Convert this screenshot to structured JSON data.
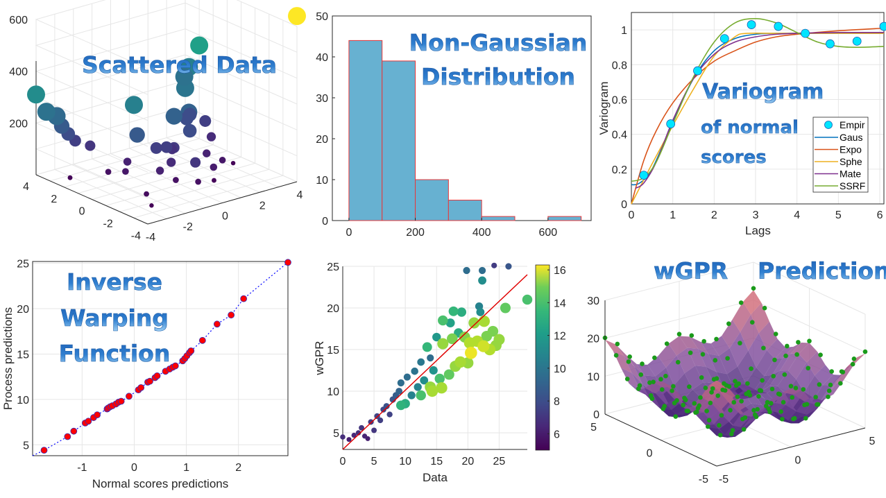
{
  "colors": {
    "wordart_top": "#1e5fb4",
    "wordart_bottom": "#8ec4f0",
    "hist_fill": "#67b1d1",
    "hist_edge": "#e8373a",
    "grid": "#e6e6e6",
    "axis": "#262626",
    "empir_marker": "#00e5ff",
    "identity_line": "#e00000",
    "warp_marker": "#ff0000",
    "warp_line": "#0000ff",
    "surface_pts": "#1a9a1a"
  },
  "chart_data": [
    {
      "id": "scattered-data",
      "type": "scatter",
      "title": "Scattered Data",
      "projection": "3d",
      "xlim": [
        -4,
        4
      ],
      "ylim": [
        -4,
        4
      ],
      "zlim": [
        0,
        600
      ],
      "x_ticks": [
        "-4",
        "-2",
        "0",
        "2",
        "4"
      ],
      "y_ticks": [
        "4",
        "2",
        "0",
        "-2",
        "-4"
      ],
      "z_ticks": [
        "200",
        "400",
        "600"
      ],
      "colormap": "viridis",
      "points": [
        {
          "x": 4,
          "y": -4,
          "z": 640
        },
        {
          "x": -4,
          "y": 4,
          "z": 310
        },
        {
          "x": -3.6,
          "y": 3.8,
          "z": 240
        },
        {
          "x": -3.2,
          "y": 3.6,
          "z": 220
        },
        {
          "x": -3,
          "y": 3.5,
          "z": 180
        },
        {
          "x": -2.8,
          "y": 3.3,
          "z": 150
        },
        {
          "x": -2.5,
          "y": 3.2,
          "z": 120
        },
        {
          "x": -2,
          "y": 2.8,
          "z": 100
        },
        {
          "x": -1,
          "y": 1,
          "z": 280
        },
        {
          "x": -1.2,
          "y": 0.5,
          "z": 180
        },
        {
          "x": 4,
          "y": 3,
          "z": 360
        },
        {
          "x": 3.6,
          "y": 3.2,
          "z": 280
        },
        {
          "x": 3.5,
          "y": 3.4,
          "z": 240
        },
        {
          "x": 2.5,
          "y": 2,
          "z": 250
        },
        {
          "x": 1.8,
          "y": 0.8,
          "z": 200
        },
        {
          "x": 1,
          "y": 0.8,
          "z": 200
        },
        {
          "x": 1.4,
          "y": 0.2,
          "z": 150
        },
        {
          "x": 2.2,
          "y": 1.5,
          "z": 150
        },
        {
          "x": 2.6,
          "y": 1.8,
          "z": 150
        },
        {
          "x": 0.2,
          "y": -1.8,
          "z": 100
        },
        {
          "x": 1.4,
          "y": -1.5,
          "z": 50
        },
        {
          "x": 1.2,
          "y": -1.8,
          "z": 10
        },
        {
          "x": 0,
          "y": 0,
          "z": 120
        },
        {
          "x": 0.4,
          "y": 0,
          "z": 110
        },
        {
          "x": -0.4,
          "y": 0.2,
          "z": 120
        },
        {
          "x": 0.6,
          "y": 0.4,
          "z": 90
        },
        {
          "x": -0.2,
          "y": -0.6,
          "z": 80
        },
        {
          "x": -2,
          "y": 1.5,
          "z": 30
        },
        {
          "x": -1.2,
          "y": 1.2,
          "z": 60
        },
        {
          "x": -1.6,
          "y": 0.8,
          "z": 40
        },
        {
          "x": -0.8,
          "y": -0.6,
          "z": 60
        },
        {
          "x": -0.4,
          "y": -1.2,
          "z": 30
        },
        {
          "x": 0.2,
          "y": -2,
          "z": 30
        },
        {
          "x": -2.2,
          "y": -1.5,
          "z": 20
        },
        {
          "x": -2.6,
          "y": -2.4,
          "z": 5
        },
        {
          "x": -3.3,
          "y": 2.5,
          "z": 10
        },
        {
          "x": 3.2,
          "y": 1.5,
          "z": 120
        },
        {
          "x": 3,
          "y": 0.8,
          "z": 80
        },
        {
          "x": 2,
          "y": -0.2,
          "z": 60
        },
        {
          "x": 2.4,
          "y": -0.8,
          "z": 40
        },
        {
          "x": 3.2,
          "y": -0.5,
          "z": 5
        }
      ]
    },
    {
      "id": "histogram",
      "type": "bar",
      "title": "Non-Gaussian Distribution",
      "title_lines": [
        "Non-Gaussian",
        "Distribution"
      ],
      "bin_edges": [
        0,
        100,
        200,
        300,
        400,
        500,
        600,
        700
      ],
      "values": [
        44,
        39,
        10,
        5,
        1,
        0,
        1
      ],
      "xlim": [
        -50,
        730
      ],
      "ylim": [
        0,
        50
      ],
      "x_ticks": [
        "0",
        "200",
        "400",
        "600"
      ],
      "y_ticks": [
        "0",
        "10",
        "20",
        "30",
        "40",
        "50"
      ]
    },
    {
      "id": "variogram",
      "type": "line",
      "title": "Variogram of normal scores",
      "title_lines": [
        "Variogram",
        "of normal",
        "scores"
      ],
      "xlabel": "Lags",
      "ylabel": "Variogram",
      "xlim": [
        0,
        6.1
      ],
      "ylim": [
        0,
        1.1
      ],
      "x_ticks": [
        "0",
        "1",
        "2",
        "3",
        "4",
        "5",
        "6"
      ],
      "y_ticks": [
        "0",
        "0.2",
        "0.4",
        "0.6",
        "0.8",
        "1"
      ],
      "legend_position": "bottom-right",
      "empirical": {
        "name": "Empir",
        "x": [
          0.3,
          0.95,
          1.6,
          2.25,
          2.9,
          3.55,
          4.2,
          4.8,
          5.45,
          6.1
        ],
        "y": [
          0.165,
          0.46,
          0.765,
          0.95,
          1.03,
          1.02,
          0.98,
          0.92,
          0.935,
          1.02
        ]
      },
      "series": [
        {
          "name": "Gaus",
          "color": "#0072bd",
          "x": [
            0,
            0.2,
            0.5,
            1,
            1.5,
            2,
            2.5,
            3,
            3.5,
            4,
            5,
            6.1
          ],
          "y": [
            0.11,
            0.12,
            0.2,
            0.47,
            0.72,
            0.88,
            0.95,
            0.975,
            0.98,
            0.98,
            0.98,
            0.98
          ]
        },
        {
          "name": "Expo",
          "color": "#d95319",
          "x": [
            0,
            0.3,
            0.6,
            1,
            1.5,
            2,
            2.5,
            3,
            3.5,
            4,
            5,
            6.1
          ],
          "y": [
            0,
            0.25,
            0.42,
            0.58,
            0.72,
            0.82,
            0.88,
            0.93,
            0.96,
            0.975,
            0.995,
            1.01
          ]
        },
        {
          "name": "Sphe",
          "color": "#edb120",
          "x": [
            0,
            0.5,
            1,
            1.5,
            2,
            2.5,
            2.8,
            3.5,
            4,
            5,
            6.1
          ],
          "y": [
            0,
            0.23,
            0.45,
            0.66,
            0.85,
            0.96,
            0.98,
            0.98,
            0.98,
            0.98,
            0.98
          ]
        },
        {
          "name": "Mate",
          "color": "#7e2f8e",
          "x": [
            0.1,
            0.3,
            0.6,
            1,
            1.5,
            2,
            2.5,
            3,
            3.5,
            4,
            5,
            6.1
          ],
          "y": [
            0.09,
            0.12,
            0.24,
            0.48,
            0.72,
            0.86,
            0.93,
            0.96,
            0.975,
            0.98,
            0.985,
            0.985
          ]
        },
        {
          "name": "SSRF",
          "color": "#77ac30",
          "x": [
            0,
            0.3,
            0.6,
            1,
            1.5,
            2,
            2.5,
            3,
            3.5,
            4,
            4.5,
            5,
            5.5,
            6.1
          ],
          "y": [
            0.13,
            0.15,
            0.24,
            0.46,
            0.73,
            0.93,
            1.04,
            1.065,
            1.04,
            0.985,
            0.93,
            0.905,
            0.9,
            0.905
          ]
        }
      ]
    },
    {
      "id": "inverse-warping",
      "type": "line",
      "title": "Inverse Warping Function",
      "title_lines": [
        "Inverse",
        "Warping",
        "Function"
      ],
      "xlabel": "Normal scores predictions",
      "ylabel": "Process predictions",
      "xlim": [
        -1.95,
        2.95
      ],
      "ylim": [
        3.8,
        25.2
      ],
      "x_ticks": [
        "-1",
        "0",
        "1",
        "2"
      ],
      "y_ticks": [
        "5",
        "10",
        "15",
        "20",
        "25"
      ],
      "x": [
        -1.73,
        -1.28,
        -1.16,
        -0.94,
        -0.88,
        -0.78,
        -0.71,
        -0.52,
        -0.5,
        -0.46,
        -0.42,
        -0.35,
        -0.3,
        -0.25,
        -0.1,
        0.08,
        0.13,
        0.26,
        0.3,
        0.4,
        0.44,
        0.6,
        0.68,
        0.74,
        0.79,
        0.93,
        0.97,
        1.01,
        1.06,
        1.09,
        1.31,
        1.59,
        1.86,
        2.1,
        2.95
      ],
      "y": [
        4.4,
        5.9,
        6.5,
        7.4,
        7.6,
        8.0,
        8.3,
        8.95,
        9.05,
        9.2,
        9.3,
        9.5,
        9.7,
        9.8,
        10.35,
        11.05,
        11.3,
        11.9,
        12.0,
        12.4,
        12.6,
        13.1,
        13.35,
        13.55,
        13.7,
        14.25,
        14.5,
        14.8,
        15.15,
        15.35,
        16.5,
        18.3,
        19.3,
        21.1,
        25.1
      ]
    },
    {
      "id": "wgpr-vs-data",
      "type": "scatter",
      "xlabel": "Data",
      "ylabel": "wGPR",
      "xlim": [
        0,
        29.5
      ],
      "ylim": [
        3,
        25
      ],
      "x_ticks": [
        "0",
        "5",
        "10",
        "15",
        "20",
        "25"
      ],
      "y_ticks": [
        "5",
        "10",
        "15",
        "20",
        "25"
      ],
      "colorbar": {
        "min": 5,
        "max": 16.3,
        "ticks": [
          "6",
          "8",
          "10",
          "12",
          "14",
          "16"
        ],
        "colormap": "viridis"
      },
      "identity_line": {
        "x": [
          0,
          29.5
        ],
        "y": [
          3,
          24
        ]
      },
      "points": [
        {
          "x": 0,
          "y": 4.5,
          "c": 6.5
        },
        {
          "x": 1,
          "y": 4.2,
          "c": 6
        },
        {
          "x": 1.8,
          "y": 4.7,
          "c": 6.3
        },
        {
          "x": 2.5,
          "y": 5,
          "c": 6.5
        },
        {
          "x": 3,
          "y": 5.6,
          "c": 6.8
        },
        {
          "x": 3.5,
          "y": 4.6,
          "c": 6.2
        },
        {
          "x": 4,
          "y": 4.3,
          "c": 6
        },
        {
          "x": 4.5,
          "y": 6.3,
          "c": 7
        },
        {
          "x": 5,
          "y": 5.3,
          "c": 6.8
        },
        {
          "x": 5.5,
          "y": 7,
          "c": 7.3
        },
        {
          "x": 6,
          "y": 6.5,
          "c": 7.1
        },
        {
          "x": 6.5,
          "y": 7.8,
          "c": 7.5
        },
        {
          "x": 7,
          "y": 8.2,
          "c": 7.8
        },
        {
          "x": 7.5,
          "y": 7.2,
          "c": 7.2
        },
        {
          "x": 8,
          "y": 9,
          "c": 8
        },
        {
          "x": 8.5,
          "y": 9.5,
          "c": 8.3
        },
        {
          "x": 9,
          "y": 10,
          "c": 8.6
        },
        {
          "x": 9.3,
          "y": 11,
          "c": 9
        },
        {
          "x": 9.3,
          "y": 8.3,
          "c": 12.3
        },
        {
          "x": 10,
          "y": 8.5,
          "c": 12
        },
        {
          "x": 10.3,
          "y": 11.7,
          "c": 9
        },
        {
          "x": 11,
          "y": 9.5,
          "c": 10
        },
        {
          "x": 11.5,
          "y": 12.4,
          "c": 9.3
        },
        {
          "x": 12,
          "y": 10.5,
          "c": 10
        },
        {
          "x": 12.5,
          "y": 13.5,
          "c": 9.5
        },
        {
          "x": 12.5,
          "y": 9.5,
          "c": 13
        },
        {
          "x": 13,
          "y": 11.3,
          "c": 10.5
        },
        {
          "x": 13.5,
          "y": 15.3,
          "c": 12.5
        },
        {
          "x": 14,
          "y": 14,
          "c": 9
        },
        {
          "x": 14.5,
          "y": 12.5,
          "c": 10.8
        },
        {
          "x": 14,
          "y": 10.5,
          "c": 14.5
        },
        {
          "x": 14.3,
          "y": 10,
          "c": 14.8
        },
        {
          "x": 15,
          "y": 16.5,
          "c": 11
        },
        {
          "x": 15.5,
          "y": 11.5,
          "c": 13
        },
        {
          "x": 15.8,
          "y": 10.4,
          "c": 14.8
        },
        {
          "x": 16,
          "y": 18.5,
          "c": 13
        },
        {
          "x": 16,
          "y": 15.7,
          "c": 14.5
        },
        {
          "x": 17,
          "y": 12,
          "c": 13.5
        },
        {
          "x": 17.2,
          "y": 18.2,
          "c": 11.5
        },
        {
          "x": 17.5,
          "y": 16.3,
          "c": 14
        },
        {
          "x": 17.7,
          "y": 19.6,
          "c": 12.5
        },
        {
          "x": 18,
          "y": 13,
          "c": 14.5
        },
        {
          "x": 18.5,
          "y": 17,
          "c": 12
        },
        {
          "x": 18.8,
          "y": 13.5,
          "c": 14.8
        },
        {
          "x": 19,
          "y": 19.5,
          "c": 12
        },
        {
          "x": 19.5,
          "y": 16.5,
          "c": 14.2
        },
        {
          "x": 19.8,
          "y": 24.5,
          "c": 9
        },
        {
          "x": 20,
          "y": 13.4,
          "c": 14.5
        },
        {
          "x": 20.3,
          "y": 15.8,
          "c": 15
        },
        {
          "x": 20.5,
          "y": 14.6,
          "c": 16
        },
        {
          "x": 21,
          "y": 18.2,
          "c": 14.5
        },
        {
          "x": 21.5,
          "y": 16,
          "c": 15
        },
        {
          "x": 21.8,
          "y": 20.2,
          "c": 10
        },
        {
          "x": 22,
          "y": 19.5,
          "c": 10.5
        },
        {
          "x": 22.3,
          "y": 24.5,
          "c": 9
        },
        {
          "x": 22.3,
          "y": 23.3,
          "c": 10.5
        },
        {
          "x": 22.6,
          "y": 18.4,
          "c": 14.8
        },
        {
          "x": 22.5,
          "y": 15.4,
          "c": 15.5
        },
        {
          "x": 23,
          "y": 16.6,
          "c": 14
        },
        {
          "x": 23.5,
          "y": 15,
          "c": 15
        },
        {
          "x": 24,
          "y": 17.2,
          "c": 14
        },
        {
          "x": 24.2,
          "y": 25.1,
          "c": 7
        },
        {
          "x": 24.5,
          "y": 15.5,
          "c": 14.5
        },
        {
          "x": 25,
          "y": 16.2,
          "c": 14.5
        },
        {
          "x": 26,
          "y": 20,
          "c": 13.5
        },
        {
          "x": 26.5,
          "y": 25,
          "c": 8
        },
        {
          "x": 29.5,
          "y": 21,
          "c": 13
        }
      ]
    },
    {
      "id": "wgpr-prediction",
      "type": "area",
      "title": "wGPR Prediction",
      "title_words": [
        "wGPR",
        "Prediction"
      ],
      "projection": "3d-surface",
      "xlim": [
        -5,
        5
      ],
      "ylim": [
        -5,
        5
      ],
      "zlim": [
        0,
        30
      ],
      "x_ticks": [
        "-5",
        "0",
        "5"
      ],
      "y_ticks": [
        "5",
        "0",
        "-5"
      ],
      "z_ticks": [
        "0",
        "10",
        "20",
        "30"
      ]
    }
  ]
}
